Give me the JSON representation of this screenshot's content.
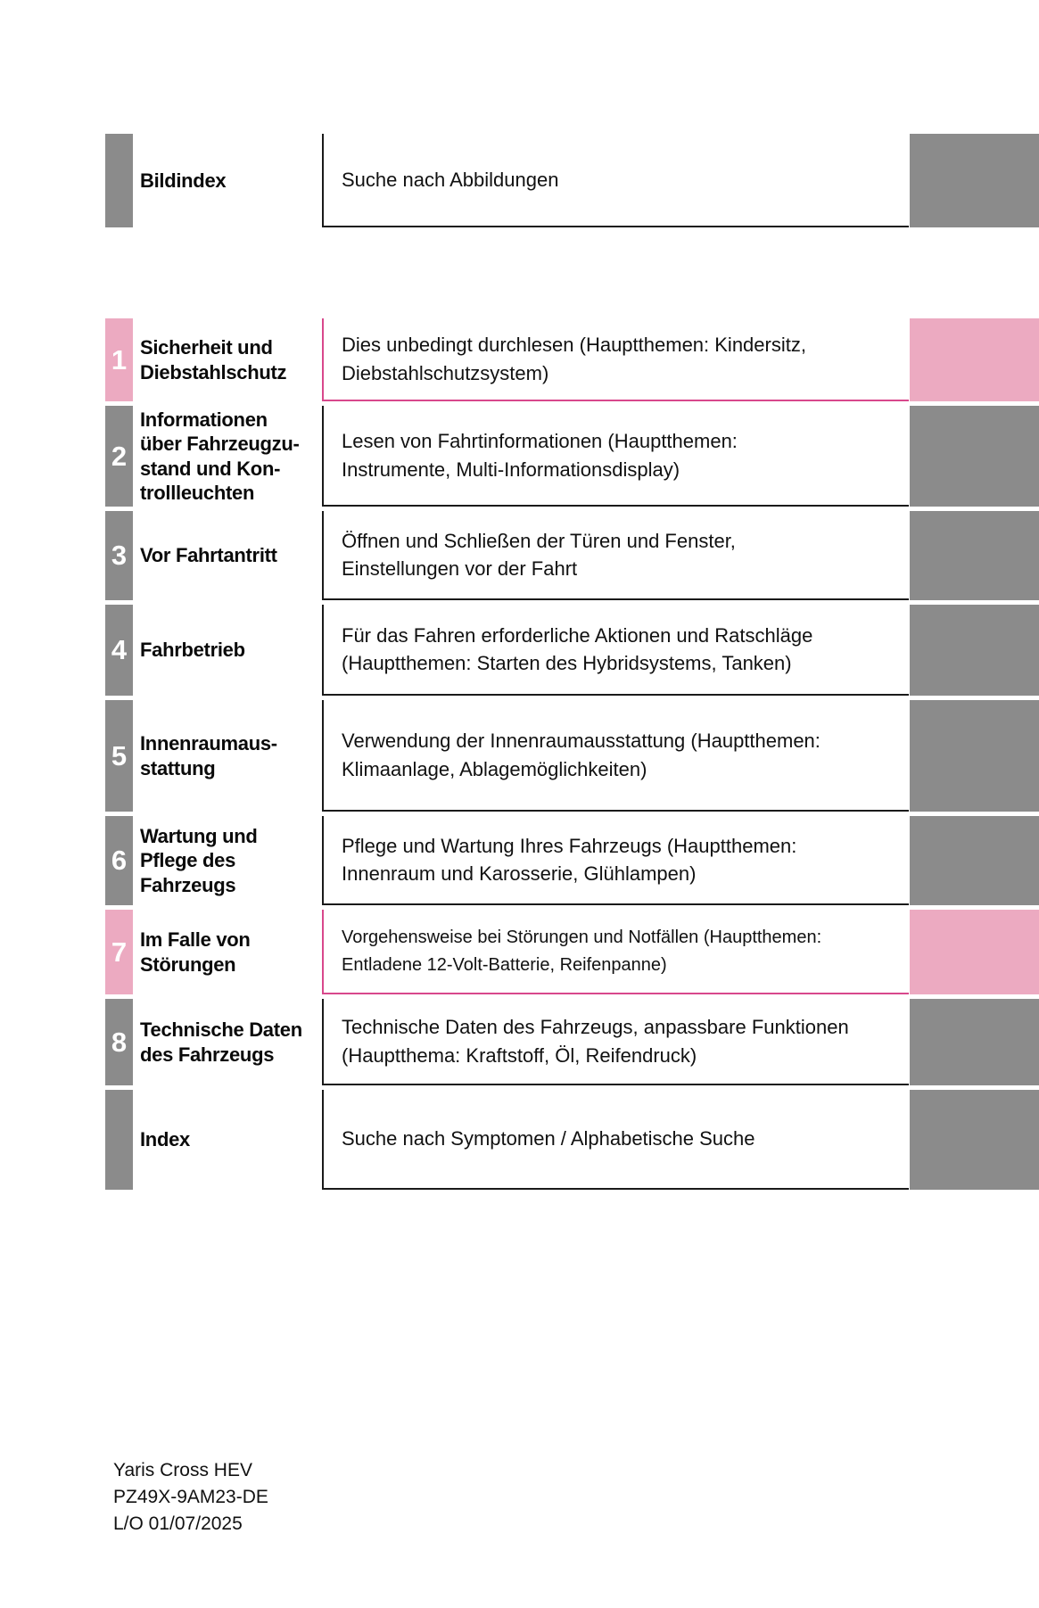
{
  "document": {
    "type": "owners-manual-table-of-contents",
    "language": "de"
  },
  "colors": {
    "gray_block": "#8b8b8b",
    "pink_block": "#ecaac1",
    "pink_border": "#d8488c",
    "dark_border": "#1a1a1a"
  },
  "toc": {
    "rows": [
      {
        "number": "",
        "accent": "gray",
        "title": "Bildindex",
        "description": "Suche nach Abbildungen"
      },
      {
        "number": "1",
        "accent": "pink",
        "title": "Sicherheit und\nDiebstahlschutz",
        "description": "Dies unbedingt durchlesen (Hauptthemen: Kindersitz,\nDiebstahlschutzsystem)"
      },
      {
        "number": "2",
        "accent": "gray",
        "title": "Informationen\nüber Fahrzeugzu-\nstand und Kon-\ntrollleuchten",
        "description": "Lesen von Fahrtinformationen (Hauptthemen:\nInstrumente, Multi-Informationsdisplay)"
      },
      {
        "number": "3",
        "accent": "gray",
        "title": "Vor Fahrtantritt",
        "description": "Öffnen und Schließen der Türen und Fenster,\nEinstellungen vor der Fahrt"
      },
      {
        "number": "4",
        "accent": "gray",
        "title": "Fahrbetrieb",
        "description": "Für das Fahren erforderliche Aktionen und Ratschläge\n(Hauptthemen: Starten des Hybridsystems, Tanken)"
      },
      {
        "number": "5",
        "accent": "gray",
        "title": "Innenraumaus-\nstattung",
        "description": "Verwendung der Innenraumausstattung (Hauptthemen:\nKlimaanlage, Ablagemöglichkeiten)"
      },
      {
        "number": "6",
        "accent": "gray",
        "title": "Wartung und\nPflege des\nFahrzeugs",
        "description": "Pflege und Wartung Ihres Fahrzeugs (Hauptthemen:\nInnenraum und Karosserie, Glühlampen)"
      },
      {
        "number": "7",
        "accent": "pink",
        "title": "Im Falle von\nStörungen",
        "description": "Vorgehensweise bei Störungen und Notfällen (Hauptthemen:\nEntladene 12-Volt-Batterie, Reifenpanne)"
      },
      {
        "number": "8",
        "accent": "gray",
        "title": "Technische Daten\ndes Fahrzeugs",
        "description": "Technische Daten des Fahrzeugs, anpassbare Funktionen\n(Hauptthema: Kraftstoff, Öl, Reifendruck)"
      },
      {
        "number": "",
        "accent": "gray",
        "title": "Index",
        "description": "Suche nach Symptomen / Alphabetische Suche"
      }
    ]
  },
  "footer": {
    "lines": [
      "Yaris Cross HEV",
      "PZ49X-9AM23-DE",
      "L/O 01/07/2025"
    ]
  }
}
